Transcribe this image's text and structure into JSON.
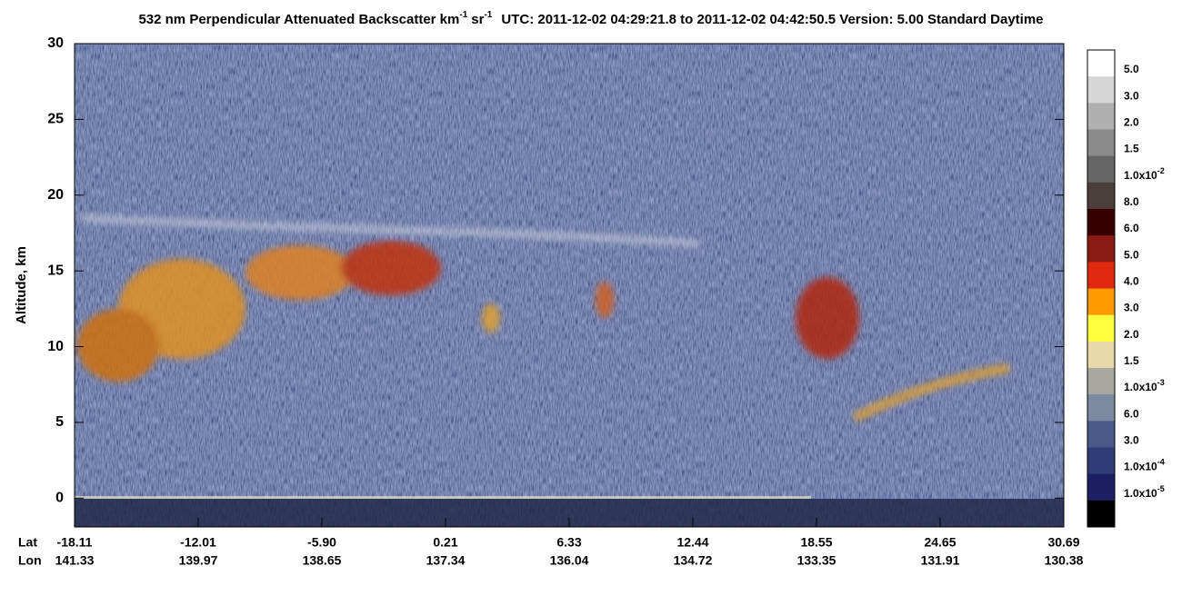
{
  "chart_data": {
    "type": "curtain",
    "title": {
      "main": "532 nm Perpendicular Attenuated Backscatter km",
      "sup1": "-1",
      "mid": "sr",
      "sup2": "-1",
      "rest": "UTC: 2011-12-02 04:29:21.8 to 2011-12-02 04:42:50.5  Version: 5.00 Standard Daytime"
    },
    "y_label": "Altitude, km",
    "ylim": [
      -1.9,
      30
    ],
    "yticks": [
      0,
      5,
      10,
      15,
      20,
      25,
      30
    ],
    "x_row_labels": [
      "Lat",
      "Lon"
    ],
    "lat": [
      "-18.11",
      "-12.01",
      "-5.90",
      "0.21",
      "6.33",
      "12.44",
      "18.55",
      "24.65",
      "30.69"
    ],
    "lon": [
      "141.33",
      "139.97",
      "138.65",
      "137.34",
      "136.04",
      "134.72",
      "133.35",
      "131.91",
      "130.38"
    ],
    "colorbar": {
      "colors": [
        "#ffffff",
        "#d6d6d6",
        "#b0b0b0",
        "#8a8a8a",
        "#666666",
        "#4a3e3a",
        "#3a0000",
        "#8b1a10",
        "#e02a10",
        "#ff9a00",
        "#ffff40",
        "#ead8a8",
        "#a8a8a0",
        "#7a8aa0",
        "#4a5a88",
        "#303c78",
        "#1e1e64",
        "#000000"
      ],
      "labels": [
        {
          "text": "5.0"
        },
        {
          "text": "3.0"
        },
        {
          "text": "2.0"
        },
        {
          "text": "1.5"
        },
        {
          "text": "1.0x10",
          "sup": "-2"
        },
        {
          "text": "8.0"
        },
        {
          "text": "6.0"
        },
        {
          "text": "5.0"
        },
        {
          "text": "4.0"
        },
        {
          "text": "3.0"
        },
        {
          "text": "2.0"
        },
        {
          "text": "1.5"
        },
        {
          "text": "1.0x10",
          "sup": "-3"
        },
        {
          "text": "6.0"
        },
        {
          "text": "3.0"
        },
        {
          "text": "1.0x10",
          "sup": "-4"
        },
        {
          "text": "1.0x10",
          "sup": "-5"
        }
      ]
    }
  }
}
